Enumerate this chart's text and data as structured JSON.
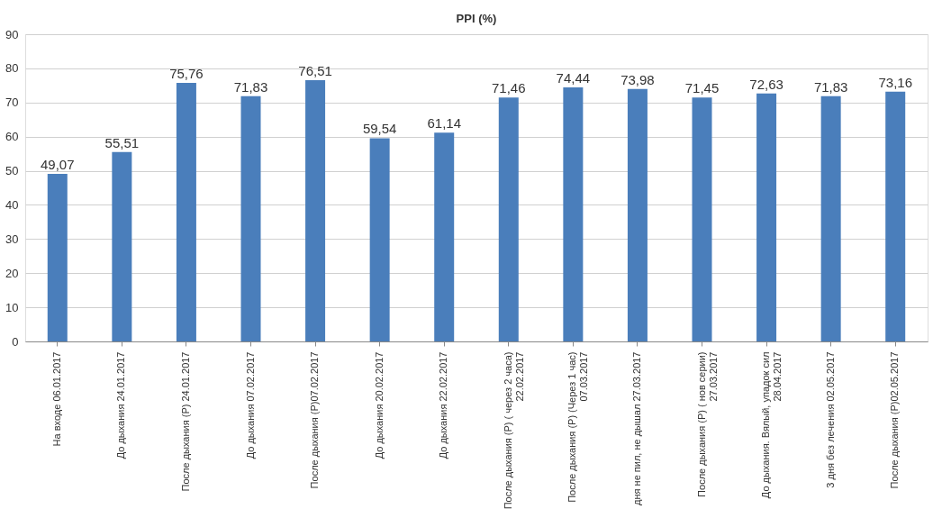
{
  "chart_data": {
    "type": "bar",
    "title": "PPI (%)",
    "categories": [
      "На входе 06.01.2017",
      "До дыхания 24.01.2017",
      "После дыхания (Р) 24.01.2017",
      "До дыхания 07.02.2017",
      "После дыхания (Р)07.02.2017",
      "До дыхания 20.02.2017",
      "До дыхания 22.02.2017",
      "После дыхания (Р) ( через 2 часа)\n22.02.2017",
      "После дыхания (Р) (Через 1 час)\n07.03.2017",
      "дня не пил, не дышал 27.03.2017",
      "После дыхания (Р) ( нов серии)\n27.03.2017",
      "До дыхания. Вялый, упадок сил\n28.04.2017",
      "3 дня без лечения 02.05.2017",
      "После дыхания (Р)02.05.2017"
    ],
    "values": [
      49.07,
      55.51,
      75.76,
      71.83,
      76.51,
      59.54,
      61.14,
      71.46,
      74.44,
      73.98,
      71.45,
      72.63,
      71.83,
      73.16
    ],
    "value_labels": [
      "49,07",
      "55,51",
      "75,76",
      "71,83",
      "76,51",
      "59,54",
      "61,14",
      "71,46",
      "74,44",
      "73,98",
      "71,45",
      "72,63",
      "71,83",
      "73,16"
    ],
    "color": "#4a7ebb",
    "ylim": [
      0,
      90
    ],
    "yticks": [
      0,
      10,
      20,
      30,
      40,
      50,
      60,
      70,
      80,
      90
    ],
    "grid": true
  }
}
